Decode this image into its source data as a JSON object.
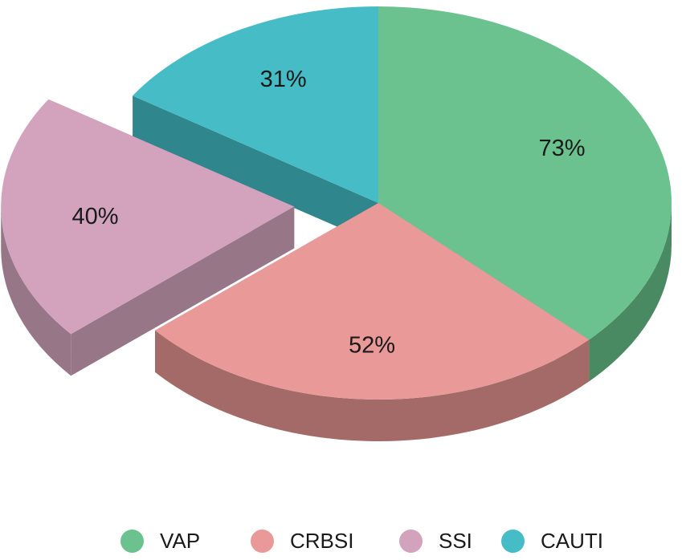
{
  "chart_data": {
    "type": "pie",
    "title": "",
    "legend_position": "bottom",
    "three_d": true,
    "exploded_slice": "SSI",
    "categories": [
      "VAP",
      "CRBSI",
      "SSI",
      "CAUTI"
    ],
    "values": [
      73,
      52,
      40,
      31
    ],
    "labels": [
      "73%",
      "52%",
      "40%",
      "31%"
    ],
    "colors": [
      "#6cc28f",
      "#e99a98",
      "#d3a3be",
      "#45bcc6"
    ],
    "side_colors": [
      "#4a8a62",
      "#a46a67",
      "#977687",
      "#2f868d"
    ]
  }
}
